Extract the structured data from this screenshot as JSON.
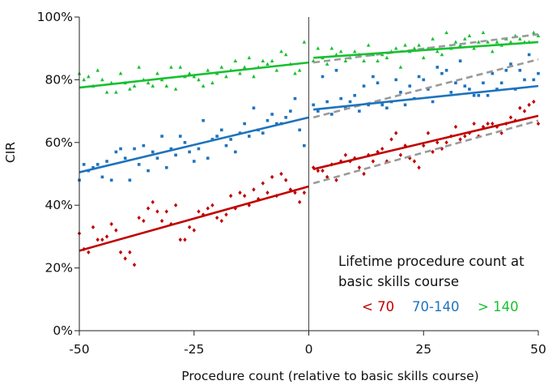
{
  "chart_data": {
    "type": "scatter",
    "title": "",
    "xlabel": "Procedure count (relative to basic skills course)",
    "ylabel": "CIR",
    "xlim": [
      -50,
      50
    ],
    "ylim": [
      0,
      100
    ],
    "x_ticks": [
      -50,
      -25,
      0,
      25,
      50
    ],
    "x_tick_labels": [
      "-50",
      "-25",
      "0",
      "25",
      "50"
    ],
    "y_ticks": [
      0,
      20,
      40,
      60,
      80,
      100
    ],
    "y_tick_labels": [
      "0%",
      "20%",
      "40%",
      "60%",
      "80%",
      "100%"
    ],
    "grid": false,
    "vertical_reference_line_x": 0,
    "legend": {
      "title_line1": "Lifetime procedure count at",
      "title_line2": "basic skills course",
      "position": "bottom-right",
      "items": [
        {
          "label": "< 70",
          "color": "#c00000"
        },
        {
          "label": "70-140",
          "color": "#1e73be"
        },
        {
          "label": "> 140",
          "color": "#18c030"
        }
      ]
    },
    "series": [
      {
        "name": "< 70",
        "color": "#c00000",
        "marker": "diamond",
        "trend_before": {
          "x": [
            -50,
            0
          ],
          "y": [
            25.5,
            46
          ]
        },
        "trend_after": {
          "x": [
            1,
            50
          ],
          "y": [
            51.5,
            68.5
          ]
        },
        "reference_line": {
          "x": [
            1,
            50
          ],
          "y": [
            47,
            67
          ]
        },
        "points": [
          [
            -50,
            31
          ],
          [
            -49,
            26
          ],
          [
            -48,
            25
          ],
          [
            -47,
            33
          ],
          [
            -46,
            29
          ],
          [
            -45,
            29
          ],
          [
            -44,
            30
          ],
          [
            -43,
            34
          ],
          [
            -42,
            32
          ],
          [
            -41,
            25
          ],
          [
            -40,
            23
          ],
          [
            -39,
            25
          ],
          [
            -38,
            21
          ],
          [
            -37,
            36
          ],
          [
            -36,
            35
          ],
          [
            -35,
            39
          ],
          [
            -34,
            41
          ],
          [
            -33,
            38
          ],
          [
            -32,
            35
          ],
          [
            -31,
            38
          ],
          [
            -30,
            34
          ],
          [
            -29,
            40
          ],
          [
            -28,
            29
          ],
          [
            -27,
            29
          ],
          [
            -26,
            33
          ],
          [
            -25,
            32
          ],
          [
            -24,
            38
          ],
          [
            -23,
            37
          ],
          [
            -22,
            39
          ],
          [
            -21,
            40
          ],
          [
            -20,
            36
          ],
          [
            -19,
            35
          ],
          [
            -18,
            37
          ],
          [
            -17,
            43
          ],
          [
            -16,
            39
          ],
          [
            -15,
            44
          ],
          [
            -14,
            43
          ],
          [
            -13,
            40
          ],
          [
            -12,
            45
          ],
          [
            -11,
            42
          ],
          [
            -10,
            47
          ],
          [
            -9,
            44
          ],
          [
            -8,
            49
          ],
          [
            -7,
            43
          ],
          [
            -6,
            50
          ],
          [
            -5,
            48
          ],
          [
            -4,
            45
          ],
          [
            -3,
            44
          ],
          [
            -2,
            41
          ],
          [
            -1,
            44
          ],
          [
            1,
            52
          ],
          [
            2,
            51
          ],
          [
            3,
            51
          ],
          [
            4,
            49
          ],
          [
            5,
            53
          ],
          [
            6,
            48
          ],
          [
            7,
            54
          ],
          [
            8,
            56
          ],
          [
            9,
            54
          ],
          [
            10,
            55
          ],
          [
            11,
            52
          ],
          [
            12,
            50
          ],
          [
            13,
            56
          ],
          [
            14,
            54
          ],
          [
            15,
            57
          ],
          [
            16,
            58
          ],
          [
            17,
            54
          ],
          [
            18,
            61
          ],
          [
            19,
            63
          ],
          [
            20,
            56
          ],
          [
            21,
            59
          ],
          [
            22,
            55
          ],
          [
            23,
            54
          ],
          [
            24,
            52
          ],
          [
            25,
            59
          ],
          [
            26,
            63
          ],
          [
            27,
            57
          ],
          [
            28,
            60
          ],
          [
            29,
            58
          ],
          [
            30,
            60
          ],
          [
            31,
            62
          ],
          [
            32,
            65
          ],
          [
            33,
            61
          ],
          [
            34,
            62
          ],
          [
            35,
            63
          ],
          [
            36,
            66
          ],
          [
            37,
            62
          ],
          [
            38,
            65
          ],
          [
            39,
            66
          ],
          [
            40,
            66
          ],
          [
            41,
            65
          ],
          [
            42,
            63
          ],
          [
            43,
            66
          ],
          [
            44,
            68
          ],
          [
            45,
            67
          ],
          [
            46,
            71
          ],
          [
            47,
            70
          ],
          [
            48,
            72
          ],
          [
            49,
            73
          ],
          [
            50,
            66
          ]
        ]
      },
      {
        "name": "70-140",
        "color": "#1e73be",
        "marker": "square",
        "trend_before": {
          "x": [
            -50,
            0
          ],
          "y": [
            50.5,
            68
          ]
        },
        "trend_after": {
          "x": [
            1,
            50
          ],
          "y": [
            70.5,
            78
          ]
        },
        "reference_line": {
          "x": [
            1,
            50
          ],
          "y": [
            68,
            86.5
          ]
        },
        "points": [
          [
            -50,
            48
          ],
          [
            -49,
            53
          ],
          [
            -48,
            51
          ],
          [
            -47,
            52
          ],
          [
            -46,
            53
          ],
          [
            -45,
            49
          ],
          [
            -44,
            54
          ],
          [
            -43,
            48
          ],
          [
            -42,
            57
          ],
          [
            -41,
            58
          ],
          [
            -40,
            55
          ],
          [
            -39,
            48
          ],
          [
            -38,
            58
          ],
          [
            -37,
            53
          ],
          [
            -36,
            59
          ],
          [
            -35,
            51
          ],
          [
            -34,
            57
          ],
          [
            -33,
            55
          ],
          [
            -32,
            62
          ],
          [
            -31,
            52
          ],
          [
            -30,
            58
          ],
          [
            -29,
            56
          ],
          [
            -28,
            62
          ],
          [
            -27,
            60
          ],
          [
            -26,
            57
          ],
          [
            -25,
            54
          ],
          [
            -24,
            58
          ],
          [
            -23,
            67
          ],
          [
            -22,
            55
          ],
          [
            -21,
            61
          ],
          [
            -20,
            62
          ],
          [
            -19,
            64
          ],
          [
            -18,
            59
          ],
          [
            -17,
            61
          ],
          [
            -16,
            57
          ],
          [
            -15,
            63
          ],
          [
            -14,
            66
          ],
          [
            -13,
            62
          ],
          [
            -12,
            71
          ],
          [
            -11,
            64
          ],
          [
            -10,
            63
          ],
          [
            -9,
            67
          ],
          [
            -8,
            69
          ],
          [
            -7,
            66
          ],
          [
            -6,
            66
          ],
          [
            -5,
            68
          ],
          [
            -4,
            70
          ],
          [
            -3,
            74
          ],
          [
            -2,
            64
          ],
          [
            -1,
            59
          ],
          [
            1,
            72
          ],
          [
            2,
            70
          ],
          [
            3,
            81
          ],
          [
            4,
            73
          ],
          [
            5,
            69
          ],
          [
            6,
            83
          ],
          [
            7,
            74
          ],
          [
            8,
            71
          ],
          [
            9,
            73
          ],
          [
            10,
            75
          ],
          [
            11,
            70
          ],
          [
            12,
            78
          ],
          [
            13,
            72
          ],
          [
            14,
            81
          ],
          [
            15,
            79
          ],
          [
            16,
            72
          ],
          [
            17,
            71
          ],
          [
            18,
            73
          ],
          [
            19,
            80
          ],
          [
            20,
            76
          ],
          [
            21,
            72
          ],
          [
            22,
            78
          ],
          [
            23,
            74
          ],
          [
            24,
            81
          ],
          [
            25,
            80
          ],
          [
            26,
            77
          ],
          [
            27,
            73
          ],
          [
            28,
            84
          ],
          [
            29,
            82
          ],
          [
            30,
            83
          ],
          [
            31,
            76
          ],
          [
            32,
            79
          ],
          [
            33,
            86
          ],
          [
            34,
            78
          ],
          [
            35,
            77
          ],
          [
            36,
            75
          ],
          [
            37,
            75
          ],
          [
            38,
            79
          ],
          [
            39,
            75
          ],
          [
            40,
            82
          ],
          [
            41,
            77
          ],
          [
            42,
            79
          ],
          [
            43,
            83
          ],
          [
            44,
            85
          ],
          [
            45,
            77
          ],
          [
            46,
            83
          ],
          [
            47,
            80
          ],
          [
            48,
            88
          ],
          [
            49,
            80
          ],
          [
            50,
            82
          ]
        ]
      },
      {
        "name": "> 140",
        "color": "#18c030",
        "marker": "triangle",
        "trend_before": {
          "x": [
            -50,
            0
          ],
          "y": [
            77.5,
            85.5
          ]
        },
        "trend_after": {
          "x": [
            1,
            50
          ],
          "y": [
            87,
            92
          ]
        },
        "reference_line": {
          "x": [
            1,
            50
          ],
          "y": [
            85.5,
            94.5
          ]
        },
        "points": [
          [
            -50,
            82
          ],
          [
            -49,
            80
          ],
          [
            -48,
            81
          ],
          [
            -47,
            78
          ],
          [
            -46,
            83
          ],
          [
            -45,
            80
          ],
          [
            -44,
            76
          ],
          [
            -43,
            79
          ],
          [
            -42,
            76
          ],
          [
            -41,
            82
          ],
          [
            -40,
            79
          ],
          [
            -39,
            77
          ],
          [
            -38,
            78
          ],
          [
            -37,
            84
          ],
          [
            -36,
            80
          ],
          [
            -35,
            79
          ],
          [
            -34,
            78
          ],
          [
            -33,
            82
          ],
          [
            -32,
            80
          ],
          [
            -31,
            78
          ],
          [
            -30,
            84
          ],
          [
            -29,
            77
          ],
          [
            -28,
            84
          ],
          [
            -27,
            81
          ],
          [
            -26,
            82
          ],
          [
            -25,
            81
          ],
          [
            -24,
            80
          ],
          [
            -23,
            78
          ],
          [
            -22,
            83
          ],
          [
            -21,
            79
          ],
          [
            -20,
            82
          ],
          [
            -19,
            84
          ],
          [
            -18,
            81
          ],
          [
            -17,
            83
          ],
          [
            -16,
            86
          ],
          [
            -15,
            82
          ],
          [
            -14,
            84
          ],
          [
            -13,
            87
          ],
          [
            -12,
            81
          ],
          [
            -11,
            84
          ],
          [
            -10,
            86
          ],
          [
            -9,
            85
          ],
          [
            -8,
            86
          ],
          [
            -7,
            83
          ],
          [
            -6,
            89
          ],
          [
            -5,
            88
          ],
          [
            -4,
            85
          ],
          [
            -3,
            82
          ],
          [
            -2,
            83
          ],
          [
            -1,
            92
          ],
          [
            1,
            86
          ],
          [
            2,
            90
          ],
          [
            3,
            87
          ],
          [
            4,
            85
          ],
          [
            5,
            90
          ],
          [
            6,
            88
          ],
          [
            7,
            89
          ],
          [
            8,
            86
          ],
          [
            9,
            87
          ],
          [
            10,
            89
          ],
          [
            11,
            88
          ],
          [
            12,
            86
          ],
          [
            13,
            91
          ],
          [
            14,
            88
          ],
          [
            15,
            86
          ],
          [
            16,
            88
          ],
          [
            17,
            87
          ],
          [
            18,
            89
          ],
          [
            19,
            90
          ],
          [
            20,
            84
          ],
          [
            21,
            91
          ],
          [
            22,
            89
          ],
          [
            23,
            90
          ],
          [
            24,
            91
          ],
          [
            25,
            87
          ],
          [
            26,
            90
          ],
          [
            27,
            93
          ],
          [
            28,
            89
          ],
          [
            29,
            88
          ],
          [
            30,
            95
          ],
          [
            31,
            90
          ],
          [
            32,
            92
          ],
          [
            33,
            91
          ],
          [
            34,
            93
          ],
          [
            35,
            94
          ],
          [
            36,
            90
          ],
          [
            37,
            92
          ],
          [
            38,
            95
          ],
          [
            39,
            92
          ],
          [
            40,
            89
          ],
          [
            41,
            92
          ],
          [
            42,
            91
          ],
          [
            43,
            93
          ],
          [
            44,
            92
          ],
          [
            45,
            94
          ],
          [
            46,
            93
          ],
          [
            47,
            92
          ],
          [
            48,
            92
          ],
          [
            49,
            95
          ],
          [
            50,
            94
          ]
        ]
      }
    ]
  }
}
